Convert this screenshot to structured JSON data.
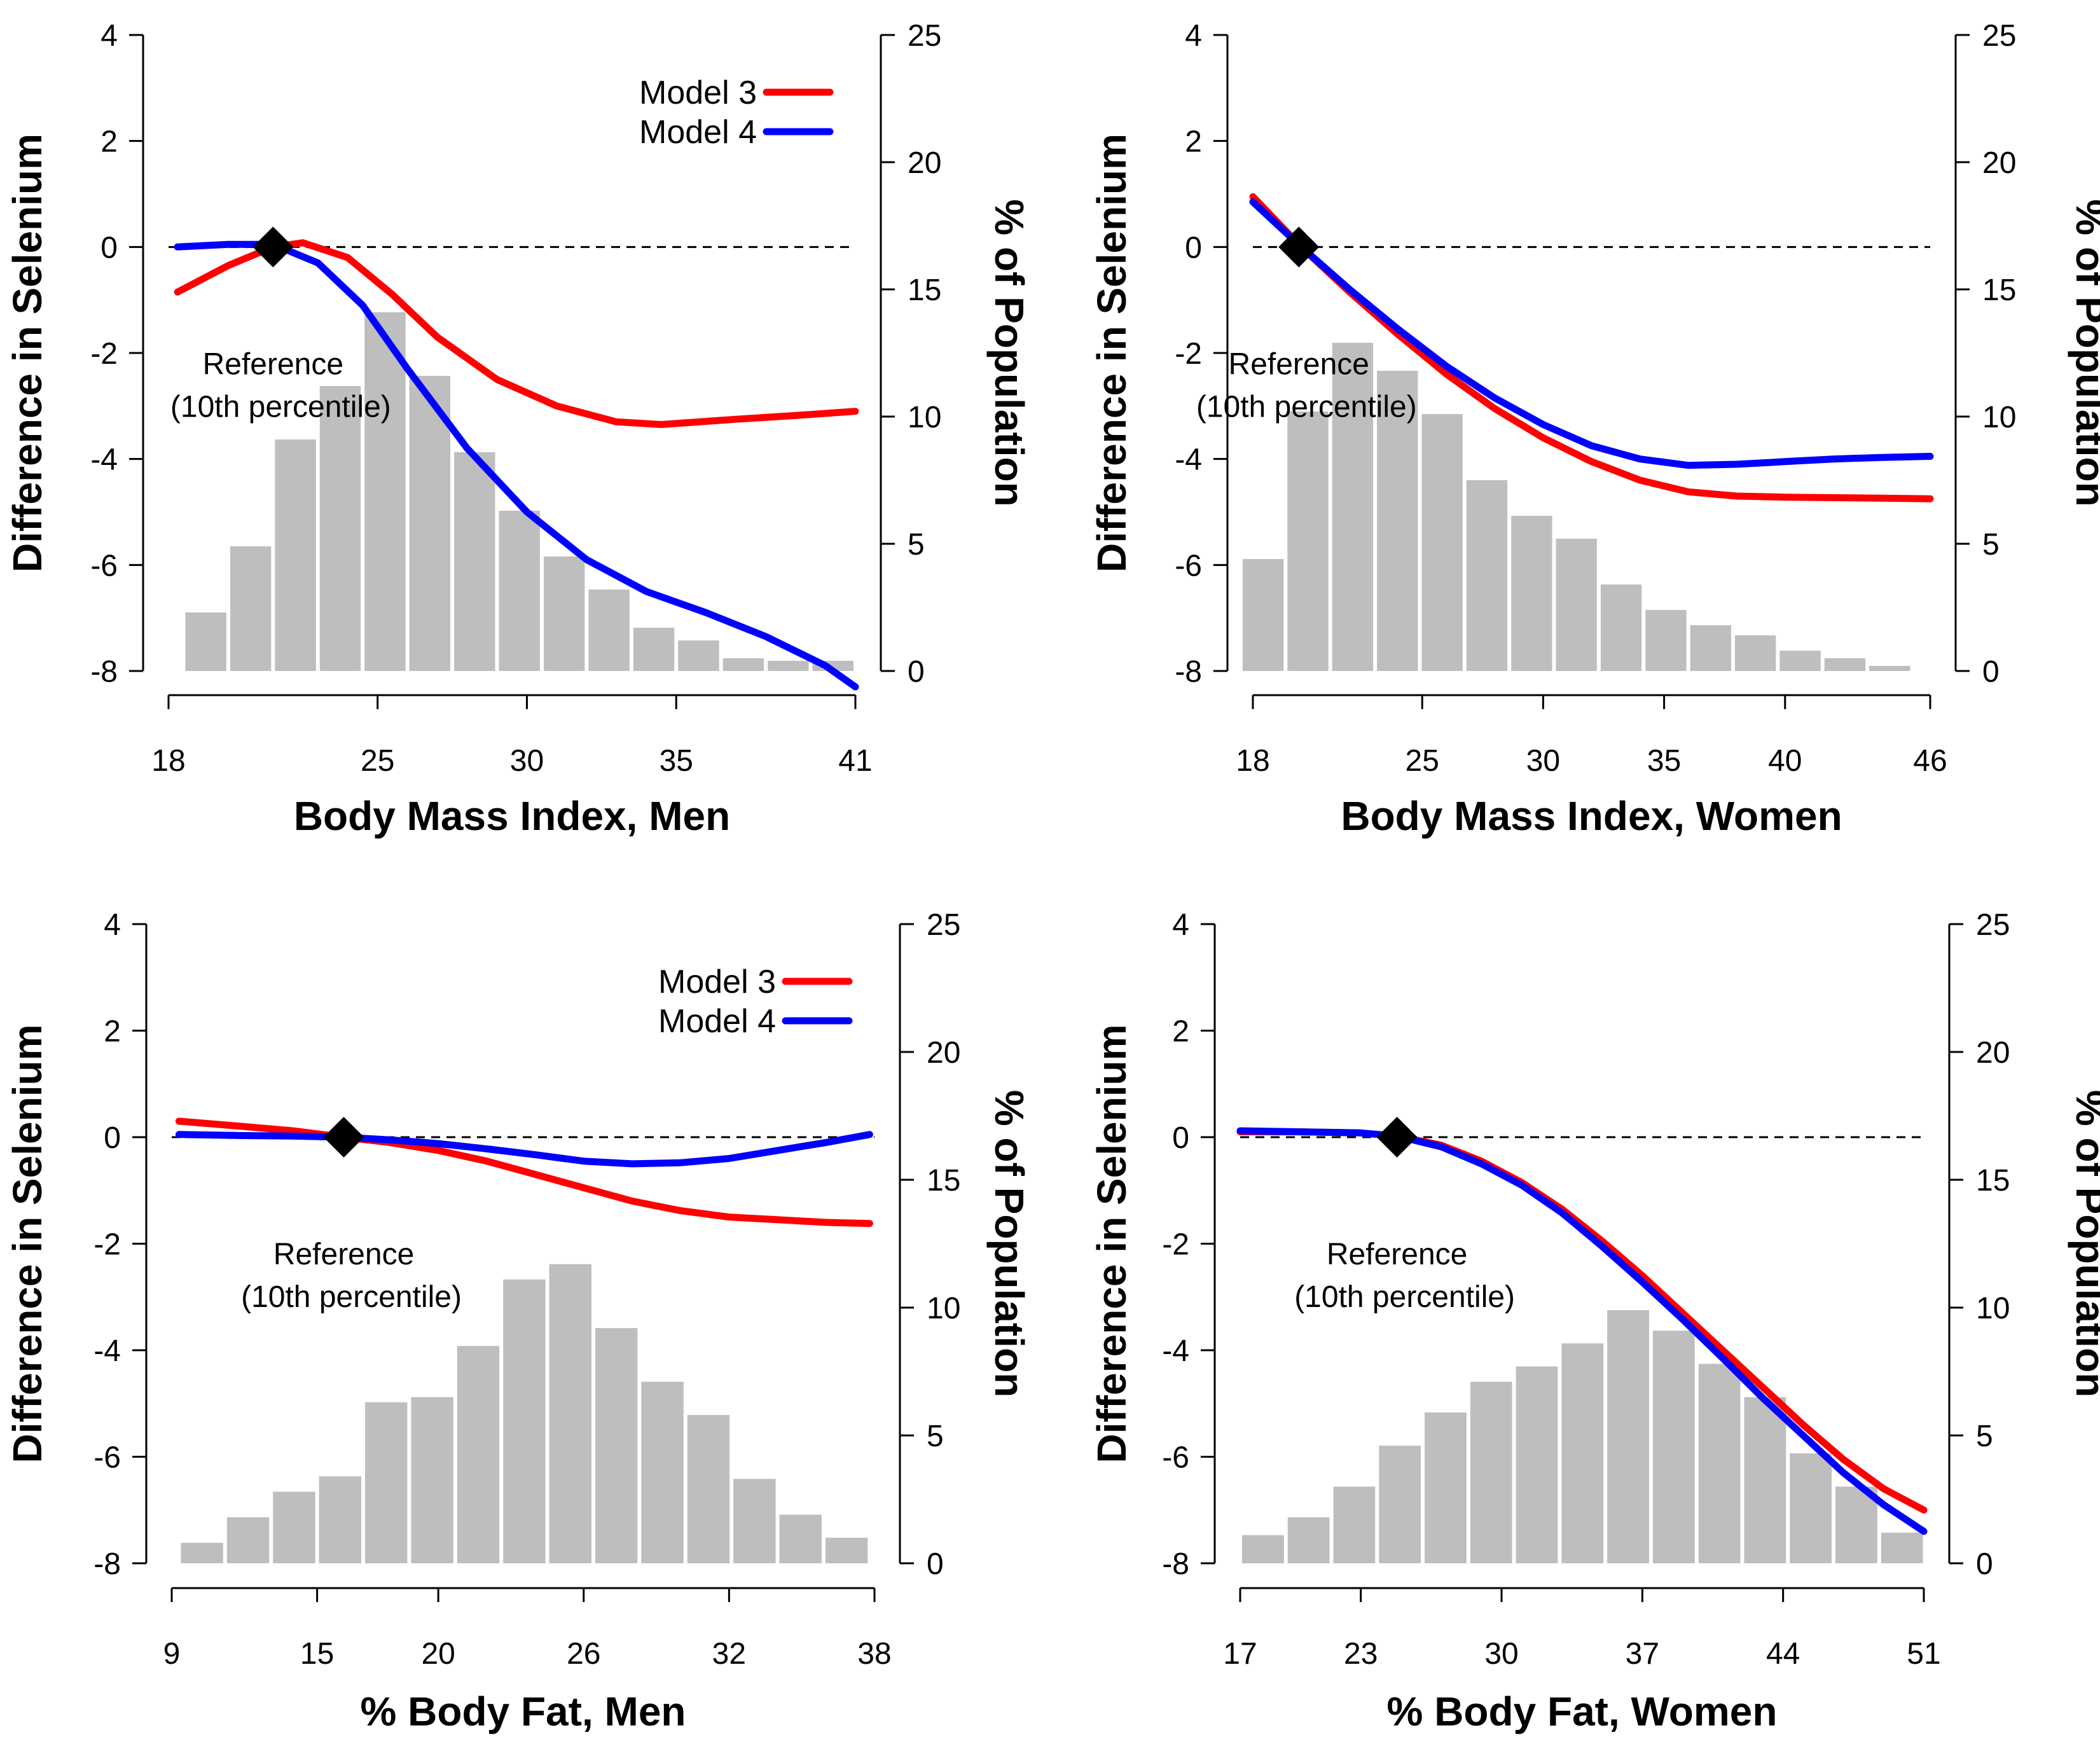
{
  "figure": {
    "ref_marker": "diamond",
    "zero_line": "dashed"
  },
  "chart_data": [
    {
      "type": "line",
      "panel": "top-left",
      "xlabel": "Body Mass Index, Men",
      "ylabel_left": "Difference in Selenium",
      "ylabel_right": "% of Population",
      "xticks": [
        "18",
        "25",
        "30",
        "35",
        "41"
      ],
      "xtick_values": [
        18,
        25,
        30,
        35,
        41
      ],
      "xlim": [
        18,
        41
      ],
      "ylim_left": [
        -8,
        4
      ],
      "yticks_left": [
        "4",
        "2",
        "0",
        "-2",
        "-4",
        "-6",
        "-8"
      ],
      "ylim_right": [
        0,
        25
      ],
      "yticks_right": [
        "25",
        "20",
        "15",
        "10",
        "5",
        "0"
      ],
      "reference": {
        "x": 21.5,
        "y": 0,
        "label": [
          "Reference",
          "(10th percentile)"
        ]
      },
      "legend": {
        "position": "top-right",
        "entries": [
          "Model 3",
          "Model 4"
        ]
      },
      "histogram": {
        "x_start": 18.5,
        "bin_width": 1.5,
        "percent": [
          2.3,
          4.9,
          9.1,
          11.2,
          14.1,
          11.6,
          8.6,
          6.3,
          4.5,
          3.2,
          1.7,
          1.2,
          0.5,
          0.4,
          0.4
        ]
      },
      "series": [
        {
          "name": "Model 3",
          "color": "#ff0000",
          "x": [
            18.3,
            20,
            21.5,
            22.5,
            24,
            25.5,
            27,
            29,
            31,
            33,
            34.5,
            37,
            39,
            41
          ],
          "y": [
            -0.85,
            -0.35,
            0,
            0.08,
            -0.2,
            -0.9,
            -1.7,
            -2.5,
            -3.0,
            -3.3,
            -3.35,
            -3.25,
            -3.18,
            -3.1
          ]
        },
        {
          "name": "Model 4",
          "color": "#0000ff",
          "x": [
            18.3,
            20,
            21.5,
            23,
            24.5,
            26,
            28,
            30,
            32,
            34,
            36,
            38,
            40,
            41
          ],
          "y": [
            0,
            0.05,
            0.05,
            -0.3,
            -1.1,
            -2.3,
            -3.8,
            -5.0,
            -5.9,
            -6.5,
            -6.9,
            -7.35,
            -7.9,
            -8.3
          ]
        }
      ]
    },
    {
      "type": "line",
      "panel": "top-right",
      "xlabel": "Body Mass Index, Women",
      "ylabel_left": "Difference in Selenium",
      "ylabel_right": "% of Population",
      "xticks": [
        "18",
        "25",
        "30",
        "35",
        "40",
        "46"
      ],
      "xtick_values": [
        18,
        25,
        30,
        35,
        40,
        46
      ],
      "xlim": [
        18,
        46
      ],
      "ylim_left": [
        -8,
        4
      ],
      "yticks_left": [
        "4",
        "2",
        "0",
        "-2",
        "-4",
        "-6",
        "-8"
      ],
      "ylim_right": [
        0,
        25
      ],
      "yticks_right": [
        "25",
        "20",
        "15",
        "10",
        "5",
        "0"
      ],
      "reference": {
        "x": 19.9,
        "y": 0,
        "label": [
          "Reference",
          "(10th percentile)"
        ]
      },
      "histogram": {
        "x_start": 17.5,
        "bin_width": 1.85,
        "percent": [
          4.4,
          10.2,
          12.9,
          11.8,
          10.1,
          7.5,
          6.1,
          5.2,
          3.4,
          2.4,
          1.8,
          1.4,
          0.8,
          0.5,
          0.2
        ]
      },
      "series": [
        {
          "name": "Model 3",
          "color": "#ff0000",
          "x": [
            18,
            20,
            22,
            24,
            26,
            28,
            30,
            32,
            34,
            36,
            38,
            40,
            42,
            44,
            46
          ],
          "y": [
            0.95,
            0.0,
            -0.85,
            -1.65,
            -2.4,
            -3.05,
            -3.6,
            -4.05,
            -4.4,
            -4.62,
            -4.7,
            -4.72,
            -4.73,
            -4.74,
            -4.75
          ]
        },
        {
          "name": "Model 4",
          "color": "#0000ff",
          "x": [
            18,
            20,
            22,
            24,
            26,
            28,
            30,
            32,
            34,
            36,
            38,
            40,
            42,
            44,
            46
          ],
          "y": [
            0.85,
            0.0,
            -0.8,
            -1.55,
            -2.25,
            -2.85,
            -3.35,
            -3.75,
            -4.0,
            -4.12,
            -4.1,
            -4.05,
            -4.0,
            -3.97,
            -3.95
          ]
        }
      ]
    },
    {
      "type": "line",
      "panel": "bottom-left",
      "xlabel": "% Body Fat, Men",
      "ylabel_left": "Difference in Selenium",
      "ylabel_right": "% of Population",
      "xticks": [
        "9",
        "15",
        "20",
        "26",
        "32",
        "38"
      ],
      "xtick_values": [
        9,
        15,
        20,
        26,
        32,
        38
      ],
      "xlim": [
        9,
        38
      ],
      "ylim_left": [
        -8,
        4
      ],
      "yticks_left": [
        "4",
        "2",
        "0",
        "-2",
        "-4",
        "-6",
        "-8"
      ],
      "ylim_right": [
        0,
        25
      ],
      "yticks_right": [
        "25",
        "20",
        "15",
        "10",
        "5",
        "0"
      ],
      "reference": {
        "x": 16.1,
        "y": 0,
        "label": [
          "Reference",
          "(10th percentile)"
        ]
      },
      "legend": {
        "position": "top-right",
        "entries": [
          "Model 3",
          "Model 4"
        ]
      },
      "histogram": {
        "x_start": 9.3,
        "bin_width": 1.9,
        "percent": [
          0.8,
          1.8,
          2.8,
          3.4,
          6.3,
          6.5,
          8.5,
          11.1,
          11.7,
          9.2,
          7.1,
          5.8,
          3.3,
          1.9,
          1.0
        ]
      },
      "series": [
        {
          "name": "Model 3",
          "color": "#ff0000",
          "x": [
            9.3,
            12,
            14,
            16.1,
            18,
            20,
            22,
            24,
            26,
            28,
            30,
            32,
            34,
            36,
            37.8
          ],
          "y": [
            0.3,
            0.2,
            0.12,
            0.0,
            -0.1,
            -0.25,
            -0.45,
            -0.7,
            -0.95,
            -1.2,
            -1.38,
            -1.5,
            -1.55,
            -1.6,
            -1.62
          ]
        },
        {
          "name": "Model 4",
          "color": "#0000ff",
          "x": [
            9.3,
            12,
            14,
            16.1,
            18,
            20,
            22,
            24,
            26,
            28,
            30,
            32,
            34,
            36,
            37.8
          ],
          "y": [
            0.05,
            0.03,
            0.02,
            0.0,
            -0.05,
            -0.12,
            -0.22,
            -0.33,
            -0.45,
            -0.5,
            -0.48,
            -0.4,
            -0.25,
            -0.1,
            0.05
          ]
        }
      ]
    },
    {
      "type": "line",
      "panel": "bottom-right",
      "xlabel": "% Body Fat, Women",
      "ylabel_left": "Difference in Selenium",
      "ylabel_right": "% of Population",
      "xticks": [
        "17",
        "23",
        "30",
        "37",
        "44",
        "51"
      ],
      "xtick_values": [
        17,
        23,
        30,
        37,
        44,
        51
      ],
      "xlim": [
        17,
        51
      ],
      "ylim_left": [
        -8,
        4
      ],
      "yticks_left": [
        "4",
        "2",
        "0",
        "-2",
        "-4",
        "-6",
        "-8"
      ],
      "ylim_right": [
        0,
        25
      ],
      "yticks_right": [
        "25",
        "20",
        "15",
        "10",
        "5",
        "0"
      ],
      "reference": {
        "x": 24.8,
        "y": 0,
        "label": [
          "Reference",
          "(10th percentile)"
        ]
      },
      "histogram": {
        "x_start": 17,
        "bin_width": 2.27,
        "percent": [
          1.1,
          1.8,
          3.0,
          4.6,
          5.9,
          7.1,
          7.7,
          8.6,
          9.9,
          9.1,
          7.8,
          6.5,
          4.3,
          3.0,
          1.2
        ]
      },
      "series": [
        {
          "name": "Model 3",
          "color": "#ff0000",
          "x": [
            17,
            20,
            23,
            24.8,
            27,
            29,
            31,
            33,
            35,
            37,
            39,
            41,
            43,
            45,
            47,
            49,
            51
          ],
          "y": [
            0.1,
            0.1,
            0.08,
            0.02,
            -0.15,
            -0.45,
            -0.85,
            -1.35,
            -1.95,
            -2.6,
            -3.3,
            -4.0,
            -4.7,
            -5.4,
            -6.05,
            -6.6,
            -7.0
          ]
        },
        {
          "name": "Model 4",
          "color": "#0000ff",
          "x": [
            17,
            20,
            23,
            24.8,
            27,
            29,
            31,
            33,
            35,
            37,
            39,
            41,
            43,
            45,
            47,
            49,
            51
          ],
          "y": [
            0.12,
            0.1,
            0.08,
            0.02,
            -0.18,
            -0.5,
            -0.9,
            -1.42,
            -2.05,
            -2.72,
            -3.42,
            -4.15,
            -4.9,
            -5.6,
            -6.3,
            -6.9,
            -7.4
          ]
        }
      ]
    }
  ]
}
